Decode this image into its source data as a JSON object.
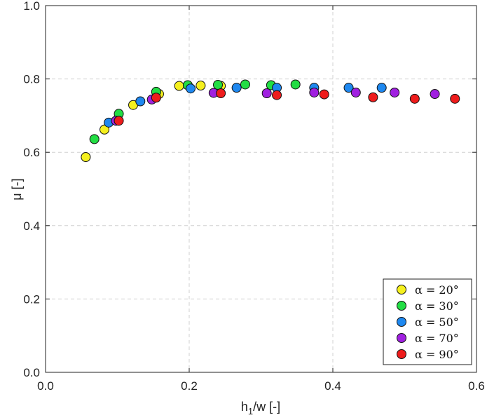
{
  "chart_data": {
    "type": "scatter",
    "title": "",
    "xlabel": "h",
    "xlabel_sub": "1",
    "xlabel_rest": "/w [-]",
    "ylabel": "μ [-]",
    "xlim": [
      0.0,
      0.6
    ],
    "ylim": [
      0.0,
      1.0
    ],
    "xticks": [
      "0.0",
      "0.2",
      "0.4",
      "0.6"
    ],
    "yticks": [
      "0.0",
      "0.2",
      "0.4",
      "0.6",
      "0.8",
      "1.0"
    ],
    "grid": true,
    "legend_position": "bottom-right",
    "series": [
      {
        "name": "α = 20°",
        "color": "#f5f01e",
        "x": [
          0.056,
          0.082,
          0.122,
          0.158,
          0.186,
          0.216,
          0.244
        ],
        "y": [
          0.587,
          0.662,
          0.729,
          0.759,
          0.781,
          0.782,
          0.781
        ]
      },
      {
        "name": "α = 30°",
        "color": "#22dd44",
        "x": [
          0.068,
          0.102,
          0.154,
          0.198,
          0.24,
          0.278,
          0.314,
          0.348
        ],
        "y": [
          0.636,
          0.705,
          0.765,
          0.783,
          0.784,
          0.785,
          0.783,
          0.785
        ]
      },
      {
        "name": "α = 50°",
        "color": "#1e88f0",
        "x": [
          0.088,
          0.132,
          0.202,
          0.266,
          0.322,
          0.374,
          0.422,
          0.468
        ],
        "y": [
          0.681,
          0.739,
          0.774,
          0.776,
          0.776,
          0.776,
          0.776,
          0.776
        ]
      },
      {
        "name": "α = 70°",
        "color": "#a020e0",
        "x": [
          0.098,
          0.148,
          0.234,
          0.308,
          0.374,
          0.432,
          0.486,
          0.542
        ],
        "y": [
          0.686,
          0.744,
          0.762,
          0.761,
          0.763,
          0.763,
          0.763,
          0.759
        ]
      },
      {
        "name": "α = 90°",
        "color": "#ee1c1c",
        "x": [
          0.102,
          0.154,
          0.244,
          0.322,
          0.388,
          0.456,
          0.514,
          0.57
        ],
        "y": [
          0.686,
          0.749,
          0.761,
          0.756,
          0.758,
          0.75,
          0.746,
          0.746
        ]
      }
    ]
  }
}
